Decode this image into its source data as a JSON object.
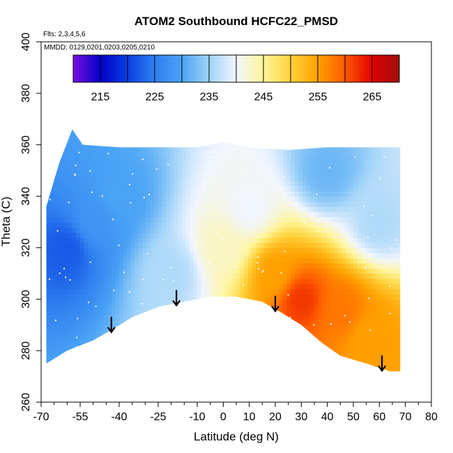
{
  "chart_data": {
    "type": "heatmap",
    "title": "ATOM2 Southbound HCFC22_PMSD",
    "flights_note": "Flts: 2,3,4,5,6",
    "dates_note": "MMDD: 0129,0201,0203,0205,0210",
    "xlabel": "Latitude (deg N)",
    "ylabel": "Theta (C)",
    "xlim": [
      -70,
      80
    ],
    "ylim": [
      260,
      400
    ],
    "x_tick_labels": [
      -70,
      -55,
      -40,
      -25,
      -10,
      0,
      10,
      20,
      30,
      40,
      50,
      60,
      70,
      80
    ],
    "x_minor_ticks": [
      -65,
      -60,
      -50,
      -45,
      -35,
      -30,
      -20,
      -15,
      -5,
      5,
      15,
      25,
      35,
      45,
      55,
      65,
      75
    ],
    "y_tick_labels": [
      260,
      280,
      300,
      320,
      340,
      360,
      380,
      400
    ],
    "colorbar": {
      "range": [
        210,
        270
      ],
      "tick_labels": [
        215,
        225,
        235,
        245,
        255,
        265
      ],
      "divisions": [
        215,
        220,
        225,
        230,
        235,
        240,
        245,
        250,
        255,
        260,
        265
      ],
      "colors": [
        "#7a10e0",
        "#0000c8",
        "#0a3fe0",
        "#2f7ff0",
        "#4aa3f5",
        "#9fd3f8",
        "#f2f6ff",
        "#fff59a",
        "#ffd23a",
        "#ffa000",
        "#ff5a00",
        "#e00000",
        "#a01010"
      ]
    },
    "region_lower_bound": [
      [
        -68,
        275
      ],
      [
        -60,
        280
      ],
      [
        -50,
        284
      ],
      [
        -43,
        288
      ],
      [
        -35,
        293
      ],
      [
        -25,
        297
      ],
      [
        -15,
        299
      ],
      [
        -5,
        301
      ],
      [
        5,
        301
      ],
      [
        15,
        299
      ],
      [
        22,
        295
      ],
      [
        30,
        290
      ],
      [
        38,
        283
      ],
      [
        45,
        278
      ],
      [
        55,
        275
      ],
      [
        64,
        272
      ],
      [
        72,
        272
      ]
    ],
    "region_upper_bound": [
      [
        -68,
        336
      ],
      [
        -63,
        353
      ],
      [
        -58,
        366
      ],
      [
        -54,
        360
      ],
      [
        -40,
        359
      ],
      [
        -25,
        359
      ],
      [
        -10,
        359
      ],
      [
        0,
        361
      ],
      [
        10,
        359
      ],
      [
        25,
        358
      ],
      [
        40,
        359
      ],
      [
        55,
        359
      ],
      [
        68,
        359
      ],
      [
        68,
        272
      ]
    ],
    "field": [
      {
        "lat": -60,
        "theta": 320,
        "value": 222
      },
      {
        "lat": -50,
        "theta": 330,
        "value": 228
      },
      {
        "lat": -40,
        "theta": 340,
        "value": 230
      },
      {
        "lat": -20,
        "theta": 310,
        "value": 236
      },
      {
        "lat": 0,
        "theta": 320,
        "value": 243
      },
      {
        "lat": 10,
        "theta": 335,
        "value": 240
      },
      {
        "lat": 20,
        "theta": 310,
        "value": 255
      },
      {
        "lat": 30,
        "theta": 300,
        "value": 262
      },
      {
        "lat": 45,
        "theta": 295,
        "value": 258
      },
      {
        "lat": 55,
        "theta": 285,
        "value": 255
      },
      {
        "lat": 40,
        "theta": 350,
        "value": 232
      },
      {
        "lat": 60,
        "theta": 330,
        "value": 236
      }
    ],
    "arrows_lat": [
      -43,
      -18,
      20,
      61
    ]
  }
}
